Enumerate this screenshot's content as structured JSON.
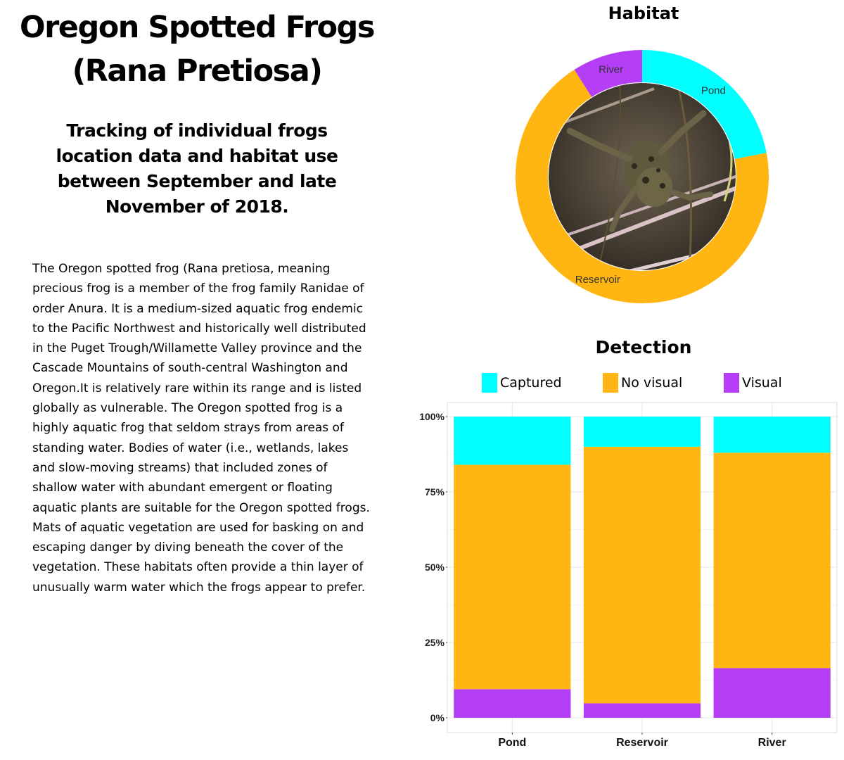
{
  "page": {
    "title": "Oregon Spotted Frogs (Rana Pretiosa)",
    "subtitle": "Tracking of individual frogs location data and habitat use between September and late November of 2018.",
    "description": "The Oregon spotted frog (Rana pretiosa, meaning precious frog is a member of the frog family Ranidae of order Anura. It is a medium-sized aquatic frog endemic to the Pacific Northwest and historically well distributed in the Puget Trough/Willamette Valley province and the Cascade Mountains of south-central Washington and Oregon.It is relatively rare within its range and is listed globally as vulnerable. The Oregon spotted frog is a highly aquatic frog that seldom strays from areas of standing water. Bodies of water (i.e., wetlands, lakes and slow-moving streams) that included zones of shallow water with abundant emergent or floating aquatic plants are suitable for the Oregon spotted frogs. Mats of aquatic vegetation are used for basking on and escaping danger by diving beneath the cover of the vegetation. These habitats often provide a thin layer of unusually warm water which the frogs appear to prefer."
  },
  "chart_data": [
    {
      "type": "pie",
      "title": "Habitat",
      "donut": true,
      "center_image": "frog-photo",
      "labels": [
        "Pond",
        "Reservoir",
        "River"
      ],
      "values": [
        22,
        69,
        9
      ],
      "colors": [
        "#00ffff",
        "#ffb612",
        "#b43ef5"
      ]
    },
    {
      "type": "bar",
      "stacked": true,
      "normalized": true,
      "title": "Detection",
      "categories": [
        "Pond",
        "Reservoir",
        "River"
      ],
      "series": [
        {
          "name": "Captured",
          "color": "#00ffff",
          "values": [
            16,
            10,
            12
          ]
        },
        {
          "name": "No visual",
          "color": "#ffb612",
          "values": [
            74.5,
            85.2,
            71.5
          ]
        },
        {
          "name": "Visual",
          "color": "#b43ef5",
          "values": [
            9.5,
            4.8,
            16.5
          ]
        }
      ],
      "stack_order_bottom_to_top": [
        "Visual",
        "No visual",
        "Captured"
      ],
      "ylim": [
        0,
        100
      ],
      "yticks": [
        "0%",
        "25%",
        "50%",
        "75%",
        "100%"
      ],
      "ytick_values": [
        0,
        25,
        50,
        75,
        100
      ],
      "legend_position": "top",
      "grid": true
    }
  ]
}
